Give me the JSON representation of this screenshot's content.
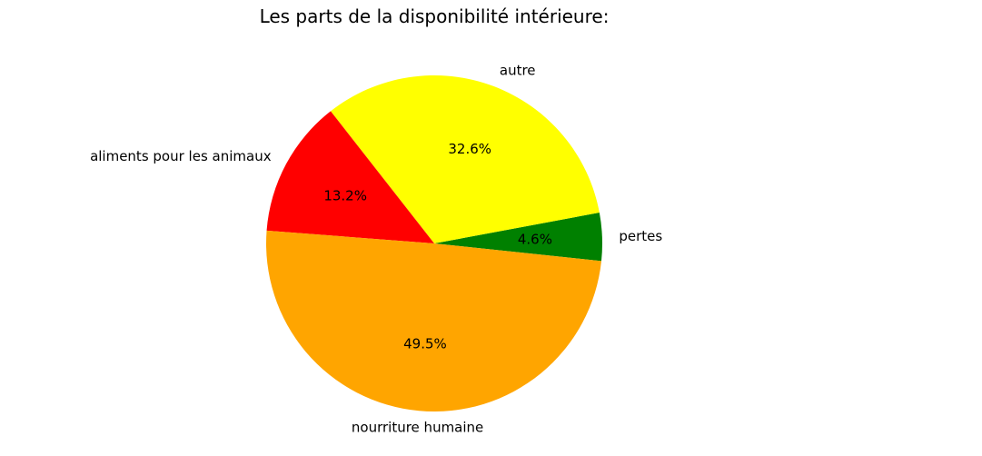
{
  "chart_data": {
    "type": "pie",
    "title": "Les parts de la disponibilité intérieure:",
    "start_angle_deg": -6,
    "direction": "counterclockwise",
    "slices": [
      {
        "label": "pertes",
        "value": 4.6,
        "pct_label": "4.6%",
        "color": "#008000"
      },
      {
        "label": "autre",
        "value": 32.6,
        "pct_label": "32.6%",
        "color": "#ffff00"
      },
      {
        "label": "aliments pour les animaux",
        "value": 13.2,
        "pct_label": "13.2%",
        "color": "#ff0000"
      },
      {
        "label": "nourriture humaine",
        "value": 49.5,
        "pct_label": "49.5%",
        "color": "#ffa500"
      }
    ]
  }
}
